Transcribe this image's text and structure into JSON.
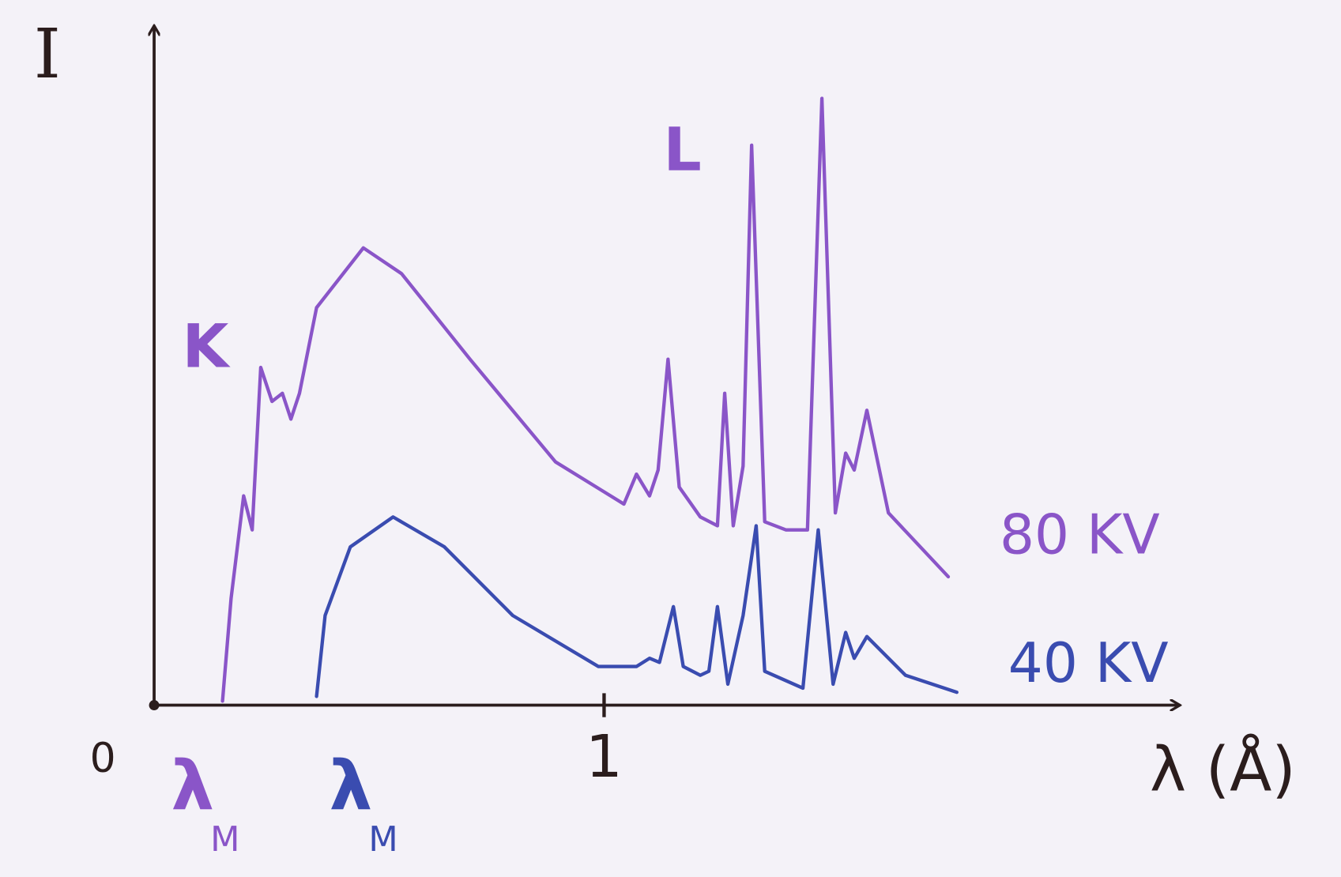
{
  "chart_data": {
    "type": "line",
    "x_label": "λ (Å)",
    "y_label": "I",
    "xlim": [
      0,
      2.28
    ],
    "ylim": [
      0,
      100
    ],
    "xticks": [
      0,
      1
    ],
    "axis_color": "#2b1d1d",
    "series": [
      {
        "name": "80 KV",
        "color": "#8a55c8",
        "x": [
          0.152,
          0.171,
          0.199,
          0.218,
          0.237,
          0.262,
          0.285,
          0.304,
          0.323,
          0.361,
          0.465,
          0.55,
          0.702,
          0.892,
          1.044,
          1.072,
          1.101,
          1.12,
          1.142,
          1.167,
          1.214,
          1.252,
          1.268,
          1.287,
          1.309,
          1.328,
          1.357,
          1.404,
          1.452,
          1.484,
          1.514,
          1.537,
          1.556,
          1.584,
          1.632,
          1.765
        ],
        "values": [
          0.6,
          15.7,
          30.8,
          25.8,
          49.7,
          44.7,
          45.9,
          42.1,
          45.9,
          58.5,
          67.3,
          63.5,
          50.9,
          35.8,
          29.6,
          34.0,
          30.8,
          34.6,
          50.9,
          32.1,
          27.7,
          26.4,
          45.9,
          26.4,
          35.2,
          82.4,
          27.0,
          25.8,
          25.8,
          89.3,
          28.3,
          37.1,
          34.6,
          43.4,
          28.3,
          18.9
        ]
      },
      {
        "name": "40 KV",
        "color": "#3a4cb0",
        "x": [
          0.361,
          0.38,
          0.436,
          0.531,
          0.645,
          0.797,
          0.987,
          1.072,
          1.101,
          1.123,
          1.154,
          1.176,
          1.214,
          1.233,
          1.252,
          1.275,
          1.309,
          1.338,
          1.357,
          1.442,
          1.476,
          1.509,
          1.537,
          1.556,
          1.584,
          1.67,
          1.784
        ],
        "values": [
          1.3,
          13.2,
          23.3,
          27.7,
          23.3,
          13.2,
          5.7,
          5.7,
          6.9,
          6.3,
          14.5,
          5.7,
          4.4,
          5.0,
          14.5,
          3.1,
          13.2,
          26.4,
          5.0,
          2.5,
          25.8,
          3.1,
          10.7,
          6.9,
          10.1,
          4.4,
          1.9
        ]
      }
    ],
    "annotations": [
      {
        "text": "K",
        "color": "#8a55c8"
      },
      {
        "text": "L",
        "color": "#8a55c8"
      },
      {
        "text": "λ",
        "subscript": "M",
        "color": "#8a55c8"
      },
      {
        "text": "λ",
        "subscript": "M",
        "color": "#3a4cb0"
      }
    ]
  }
}
